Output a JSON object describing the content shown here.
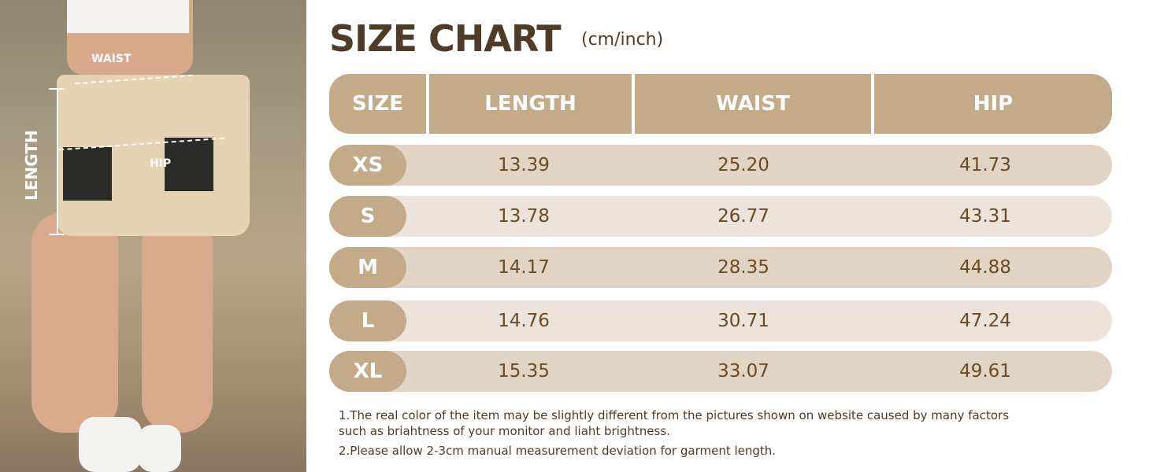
{
  "photo": {
    "labels": {
      "waist": "WAIST",
      "hip": "HIP",
      "length": "LENGTH"
    }
  },
  "title": "SIZE CHART",
  "unit": "(cm/inch)",
  "headers": [
    "SIZE",
    "LENGTH",
    "WAIST",
    "HIP"
  ],
  "rows": [
    {
      "size": "XS",
      "length": "13.39",
      "waist": "25.20",
      "hip": "41.73"
    },
    {
      "size": "S",
      "length": "13.78",
      "waist": "26.77",
      "hip": "43.31"
    },
    {
      "size": "M",
      "length": "14.17",
      "waist": "28.35",
      "hip": "44.88"
    },
    {
      "size": "L",
      "length": "14.76",
      "waist": "30.71",
      "hip": "47.24"
    },
    {
      "size": "XL",
      "length": "15.35",
      "waist": "33.07",
      "hip": "49.61"
    }
  ],
  "notes": [
    "1.The real color of the item may be slightly different from the pictures shown on website caused by many factors such as briahtness of your monitor and liaht brightness.",
    "2.Please allow 2-3cm manual measurement deviation for garment length."
  ],
  "colors": {
    "header": "#c3aa88",
    "row_dark": "#e2d4c5",
    "row_light": "#ece4da",
    "text": "#6e4a22",
    "title": "#4f3b26"
  }
}
